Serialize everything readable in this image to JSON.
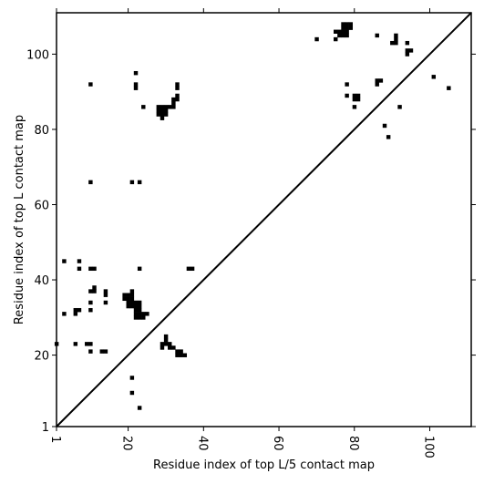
{
  "chart_data": {
    "type": "heatmap",
    "title": "",
    "xlabel": "Residue index of top L/5 contact map",
    "ylabel": "Residue index of top L contact map",
    "xlim": [
      1,
      111
    ],
    "ylim": [
      1,
      111
    ],
    "x_ticks": [
      1,
      20,
      40,
      60,
      80,
      100
    ],
    "y_ticks": [
      1,
      20,
      40,
      60,
      80,
      100
    ],
    "x_tick_labels": [
      "1",
      "20",
      "40",
      "60",
      "80",
      "100"
    ],
    "y_tick_labels": [
      "1",
      "20",
      "40",
      "60",
      "80",
      "100"
    ],
    "diagonal": true,
    "grid": false,
    "cell_color": "#000000",
    "upper_contacts": [
      [
        70,
        104
      ],
      [
        75,
        104
      ],
      [
        75,
        106
      ],
      [
        76,
        105
      ],
      [
        76,
        106
      ],
      [
        77,
        105
      ],
      [
        77,
        106
      ],
      [
        77,
        107
      ],
      [
        77,
        108
      ],
      [
        78,
        105
      ],
      [
        78,
        106
      ],
      [
        78,
        107
      ],
      [
        78,
        108
      ],
      [
        79,
        107
      ],
      [
        79,
        108
      ],
      [
        78,
        92
      ],
      [
        78,
        89
      ],
      [
        80,
        89
      ],
      [
        80,
        88
      ],
      [
        81,
        89
      ],
      [
        81,
        88
      ],
      [
        80,
        86
      ],
      [
        86,
        105
      ],
      [
        86,
        93
      ],
      [
        86,
        92
      ],
      [
        87,
        93
      ],
      [
        88,
        81
      ],
      [
        89,
        78
      ],
      [
        90,
        103
      ],
      [
        91,
        103
      ],
      [
        91,
        104
      ],
      [
        91,
        105
      ],
      [
        92,
        86
      ],
      [
        94,
        103
      ],
      [
        94,
        101
      ],
      [
        94,
        100
      ],
      [
        95,
        101
      ],
      [
        101,
        94
      ],
      [
        105,
        91
      ]
    ],
    "lower_contacts": [
      [
        1,
        23
      ],
      [
        3,
        45
      ],
      [
        3,
        31
      ],
      [
        6,
        32
      ],
      [
        6,
        31
      ],
      [
        6,
        23
      ],
      [
        7,
        45
      ],
      [
        7,
        43
      ],
      [
        7,
        32
      ],
      [
        9,
        23
      ],
      [
        10,
        92
      ],
      [
        10,
        66
      ],
      [
        10,
        43
      ],
      [
        10,
        37
      ],
      [
        10,
        34
      ],
      [
        10,
        32
      ],
      [
        10,
        23
      ],
      [
        10,
        21
      ],
      [
        11,
        43
      ],
      [
        11,
        37
      ],
      [
        11,
        38
      ],
      [
        13,
        21
      ],
      [
        14,
        21
      ],
      [
        14,
        37
      ],
      [
        14,
        36
      ],
      [
        14,
        34
      ],
      [
        19,
        36
      ],
      [
        19,
        35
      ],
      [
        20,
        36
      ],
      [
        20,
        35
      ],
      [
        20,
        34
      ],
      [
        20,
        33
      ],
      [
        21,
        37
      ],
      [
        21,
        36
      ],
      [
        21,
        35
      ],
      [
        21,
        34
      ],
      [
        21,
        33
      ],
      [
        21,
        66
      ],
      [
        21,
        14
      ],
      [
        21,
        10
      ],
      [
        22,
        95
      ],
      [
        22,
        92
      ],
      [
        22,
        91
      ],
      [
        22,
        34
      ],
      [
        22,
        33
      ],
      [
        22,
        32
      ],
      [
        22,
        31
      ],
      [
        22,
        30
      ],
      [
        23,
        34
      ],
      [
        23,
        33
      ],
      [
        23,
        32
      ],
      [
        23,
        31
      ],
      [
        23,
        30
      ],
      [
        23,
        66
      ],
      [
        23,
        43
      ],
      [
        23,
        6
      ],
      [
        24,
        86
      ],
      [
        24,
        31
      ],
      [
        24,
        30
      ],
      [
        25,
        31
      ],
      [
        29,
        23
      ],
      [
        29,
        22
      ],
      [
        30,
        23
      ],
      [
        30,
        24
      ],
      [
        30,
        25
      ],
      [
        31,
        23
      ],
      [
        31,
        22
      ],
      [
        32,
        22
      ],
      [
        33,
        21
      ],
      [
        33,
        20
      ],
      [
        34,
        21
      ],
      [
        34,
        20
      ],
      [
        35,
        20
      ],
      [
        36,
        43
      ],
      [
        37,
        43
      ],
      [
        28,
        86
      ],
      [
        28,
        85
      ],
      [
        28,
        84
      ],
      [
        29,
        86
      ],
      [
        29,
        85
      ],
      [
        29,
        84
      ],
      [
        29,
        83
      ],
      [
        30,
        86
      ],
      [
        30,
        85
      ],
      [
        30,
        84
      ],
      [
        31,
        86
      ],
      [
        32,
        86
      ],
      [
        32,
        87
      ],
      [
        32,
        88
      ],
      [
        33,
        88
      ],
      [
        33,
        89
      ],
      [
        33,
        91
      ],
      [
        33,
        92
      ]
    ]
  }
}
